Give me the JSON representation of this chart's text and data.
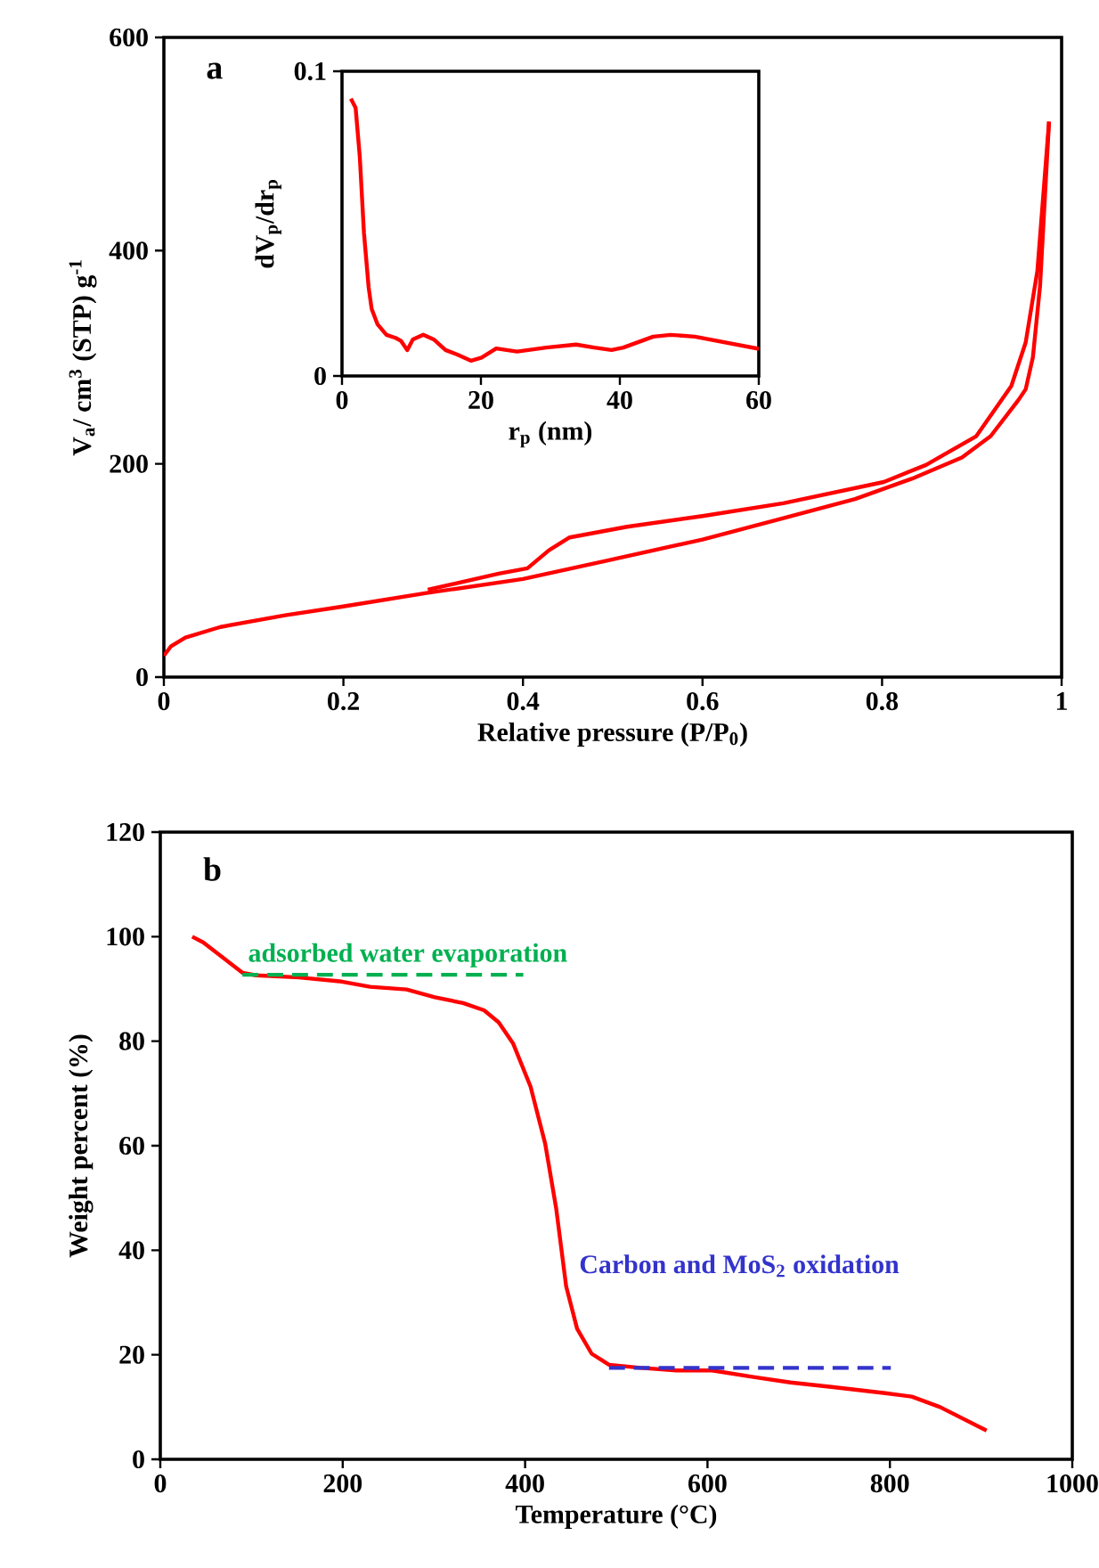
{
  "chart_data": [
    {
      "type": "line",
      "xlabel": "Relative pressure (P/P$_{0}$)",
      "ylabel": "V$_{a}$/ cm$^{3}$ (STP) g$^{-1}$",
      "annotations": [
        "a"
      ],
      "xlim": [
        0,
        1
      ],
      "ylim": [
        0,
        600
      ],
      "xticks": [
        0,
        0.2,
        0.4,
        0.6,
        0.8,
        1
      ],
      "yticks": [
        0,
        200,
        400,
        600
      ],
      "series": [
        {
          "color": "#ff0000",
          "x": [
            0,
            0.008,
            0.024,
            0.063,
            0.135,
            0.198,
            0.294,
            0.4,
            0.492,
            0.6,
            0.69,
            0.77,
            0.833,
            0.889,
            0.921,
            0.952,
            0.96,
            0.968,
            0.976,
            0.986
          ],
          "values": [
            20,
            29,
            37,
            47,
            58,
            66,
            79,
            92,
            109,
            129,
            149,
            167,
            186,
            206,
            226,
            260,
            270,
            300,
            367,
            521
          ]
        },
        {
          "color": "#ff0000",
          "x": [
            0.986,
            0.973,
            0.96,
            0.944,
            0.905,
            0.849,
            0.802,
            0.69,
            0.6,
            0.516,
            0.452,
            0.429,
            0.405,
            0.373,
            0.294
          ],
          "values": [
            521,
            381,
            314,
            273,
            226,
            199,
            183,
            163,
            151,
            141,
            131,
            119,
            102,
            97,
            82
          ]
        }
      ]
    },
    {
      "type": "line",
      "xlabel": "r$_{p}$ (nm)",
      "ylabel": "dV$_{p}$/dr$_{p}$",
      "xlim": [
        0,
        60
      ],
      "ylim": [
        0,
        0.1
      ],
      "xticks": [
        0,
        20,
        40,
        60
      ],
      "yticks": [
        0,
        0.1
      ],
      "series": [
        {
          "color": "#ff0000",
          "x": [
            1.28,
            1.96,
            2.56,
            3.16,
            3.84,
            4.27,
            5.1,
            6.4,
            7.7,
            8.5,
            9.4,
            10.2,
            11.7,
            13.2,
            14.9,
            16.6,
            18.6,
            20.1,
            22.2,
            25.2,
            29.4,
            33.7,
            36.3,
            38.8,
            40.5,
            44.8,
            47.3,
            50.8,
            60
          ],
          "values": [
            0.091,
            0.088,
            0.072,
            0.047,
            0.029,
            0.022,
            0.017,
            0.0135,
            0.0125,
            0.0115,
            0.0085,
            0.012,
            0.0135,
            0.012,
            0.0085,
            0.007,
            0.005,
            0.006,
            0.009,
            0.008,
            0.0093,
            0.0103,
            0.0093,
            0.0085,
            0.0093,
            0.0129,
            0.0135,
            0.0129,
            0.0089
          ]
        }
      ]
    },
    {
      "type": "line",
      "xlabel": "Temperature (°C)",
      "ylabel": "Weight percent (%)",
      "annotations": [
        "b"
      ],
      "xlim": [
        0,
        1000
      ],
      "ylim": [
        0,
        120
      ],
      "xticks": [
        0,
        200,
        400,
        600,
        800,
        1000
      ],
      "yticks": [
        0,
        20,
        40,
        60,
        80,
        100,
        120
      ],
      "series": [
        {
          "color": "#ff0000",
          "x": [
            35,
            47,
            90,
            105,
            152,
            199,
            230,
            270,
            301,
            332,
            355,
            371,
            387,
            406,
            422,
            434,
            445,
            457,
            473,
            492,
            527,
            566,
            605,
            652,
            691,
            738,
            793,
            824,
            855,
            906
          ],
          "values": [
            100,
            98.9,
            93.1,
            92.6,
            92.2,
            91.4,
            90.4,
            89.9,
            88.4,
            87.3,
            85.9,
            83.6,
            79.5,
            71.3,
            60.4,
            48.1,
            33.1,
            25,
            20.2,
            18.1,
            17.5,
            17,
            17,
            15.7,
            14.7,
            13.8,
            12.7,
            12,
            10,
            5.5
          ]
        },
        {
          "name": "adsorbed water evaporation",
          "color": "#00b050",
          "line_style": "dashed",
          "x": [
            90,
            398
          ],
          "values": [
            92.7,
            92.7
          ]
        },
        {
          "name": "Carbon and MoS$_{2}$ oxidation",
          "color": "#3333cc",
          "line_style": "dashed",
          "x": [
            492,
            801
          ],
          "values": [
            17.5,
            17.5
          ]
        }
      ]
    }
  ]
}
